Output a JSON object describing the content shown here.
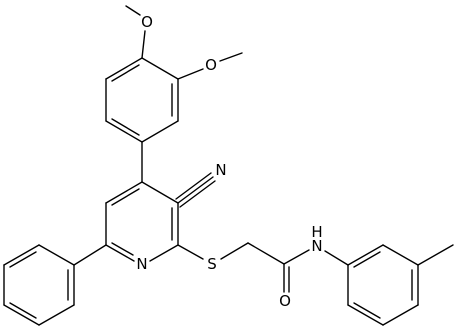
{
  "atoms": {
    "methoxy_o_top": "O",
    "methoxy_o_right": "O",
    "nitrile_n": "N",
    "pyridine_n": "N",
    "thioether_s": "S",
    "carbonyl_o": "O",
    "amide_n": "N",
    "amide_h": "H"
  }
}
